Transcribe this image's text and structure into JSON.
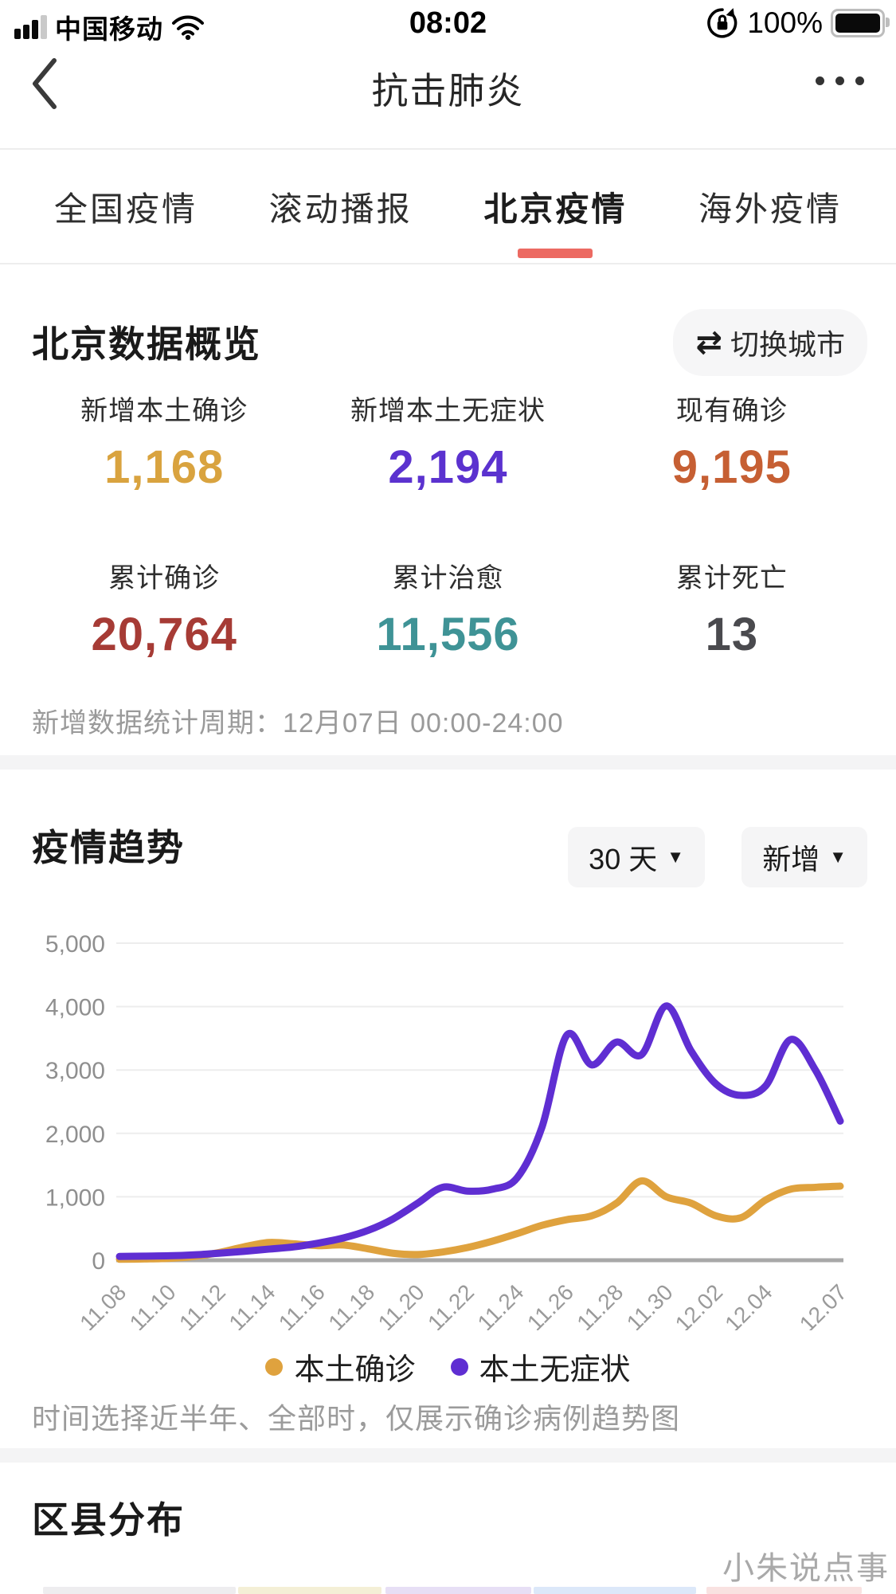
{
  "status_bar": {
    "carrier": "中国移动",
    "time": "08:02",
    "battery_percent": "100%"
  },
  "nav": {
    "title": "抗击肺炎"
  },
  "tabs": [
    {
      "label": "全国疫情",
      "active": false
    },
    {
      "label": "滚动播报",
      "active": false
    },
    {
      "label": "北京疫情",
      "active": true
    },
    {
      "label": "海外疫情",
      "active": false
    }
  ],
  "accent": {
    "tab_underline": "#ec6a62"
  },
  "overview": {
    "title": "北京数据概览",
    "switch_city_label": "切换城市",
    "stats": [
      {
        "label": "新增本土确诊",
        "value": "1,168",
        "color": "#d9a33f"
      },
      {
        "label": "新增本土无症状",
        "value": "2,194",
        "color": "#5b32cf"
      },
      {
        "label": "现有确诊",
        "value": "9,195",
        "color": "#c65f33"
      },
      {
        "label": "累计确诊",
        "value": "20,764",
        "color": "#a63b35"
      },
      {
        "label": "累计治愈",
        "value": "11,556",
        "color": "#3f9396"
      },
      {
        "label": "累计死亡",
        "value": "13",
        "color": "#4a4a4e"
      }
    ],
    "period": "新增数据统计周期：12月07日 00:00-24:00"
  },
  "trend": {
    "title": "疫情趋势",
    "range_selector": "30 天",
    "type_selector": "新增",
    "note": "时间选择近半年、全部时，仅展示确诊病例趋势图"
  },
  "chart_data": {
    "type": "line",
    "title": "疫情趋势",
    "x": [
      "11.08",
      "11.09",
      "11.10",
      "11.11",
      "11.12",
      "11.13",
      "11.14",
      "11.15",
      "11.16",
      "11.17",
      "11.18",
      "11.19",
      "11.20",
      "11.21",
      "11.22",
      "11.23",
      "11.24",
      "11.25",
      "11.26",
      "11.27",
      "11.28",
      "11.29",
      "11.30",
      "12.01",
      "12.02",
      "12.03",
      "12.04",
      "12.05",
      "12.06",
      "12.07"
    ],
    "xticks": [
      "11.08",
      "11.10",
      "11.12",
      "11.14",
      "11.16",
      "11.18",
      "11.20",
      "11.22",
      "11.24",
      "11.26",
      "11.28",
      "11.30",
      "12.02",
      "12.04",
      "12.07"
    ],
    "yticks": [
      0,
      1000,
      2000,
      3000,
      4000,
      5000
    ],
    "ylim": [
      0,
      5000
    ],
    "grid": true,
    "legend_position": "bottom",
    "series": [
      {
        "name": "本土确诊",
        "color": "#dfa23e",
        "values": [
          15,
          20,
          30,
          60,
          120,
          210,
          280,
          260,
          230,
          240,
          180,
          110,
          90,
          130,
          200,
          300,
          420,
          550,
          640,
          700,
          900,
          1250,
          1000,
          900,
          700,
          670,
          950,
          1120,
          1150,
          1168
        ]
      },
      {
        "name": "本土无症状",
        "color": "#5f2ed2",
        "values": [
          60,
          65,
          70,
          85,
          110,
          140,
          175,
          210,
          270,
          350,
          470,
          650,
          900,
          1150,
          1090,
          1120,
          1300,
          2100,
          3550,
          3080,
          3440,
          3240,
          4010,
          3300,
          2780,
          2600,
          2750,
          3480,
          3000,
          2194
        ]
      }
    ]
  },
  "district": {
    "title": "区县分布",
    "preview_colors": [
      "#eeedef",
      "#f4efd6",
      "#e7dff5",
      "#dce8f9",
      "#f9e2e1"
    ]
  },
  "watermark": "小朱说点事"
}
